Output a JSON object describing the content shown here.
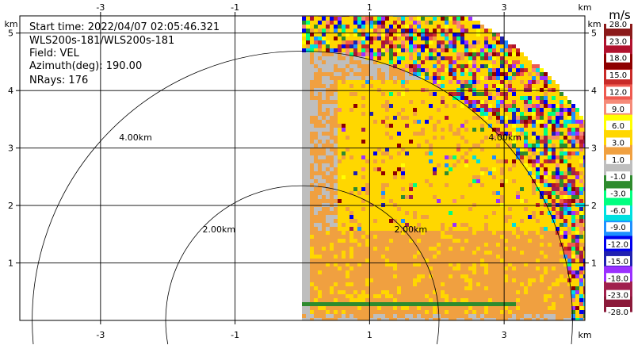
{
  "header": {
    "start_time": "Start time: 2022/04/07 02:05:46.321",
    "instrument": "WLS200s-181/WLS200s-181",
    "field": "Field: VEL",
    "azimuth": "Azimuth(deg): 190.00",
    "nrays": "NRays: 176"
  },
  "chart_data": {
    "type": "heatmap",
    "title": "",
    "xlabel": "km",
    "ylabel": "km",
    "xlim": [
      -4.2,
      4.2
    ],
    "ylim": [
      0,
      5.3
    ],
    "x_ticks": [
      -3,
      -1,
      1,
      3
    ],
    "y_ticks": [
      1,
      2,
      3,
      4,
      5
    ],
    "grid": true,
    "range_rings": [
      {
        "radius_km": 2.0,
        "label": "2.00km"
      },
      {
        "radius_km": 4.0,
        "label": "4.00km"
      }
    ],
    "sector": {
      "start_x_km": 0.0,
      "max_range_km": 5.15,
      "description_values": "dominant velocity bands"
    },
    "regions": [
      {
        "name": "near-ground band",
        "range_km": [
          0.0,
          0.1
        ],
        "value_ms": 1.5
      },
      {
        "name": "low-level jet line",
        "range_km": [
          0.2,
          0.3
        ],
        "value_ms": -2.0
      },
      {
        "name": "lower layer",
        "range_km": [
          0.3,
          1.4
        ],
        "value_ms": 2.0
      },
      {
        "name": "core layer",
        "range_km": [
          1.4,
          3.6
        ],
        "value_ms": 4.5
      },
      {
        "name": "upper layer",
        "range_km": [
          3.6,
          4.0
        ],
        "value_ms": 2.0
      },
      {
        "name": "noisy far range",
        "range_km": [
          4.0,
          5.15
        ],
        "value_ms": null
      }
    ],
    "colorbar": {
      "unit": "m/s",
      "labels": [
        "28.0",
        "23.0",
        "18.0",
        "15.0",
        "12.0",
        "9.0",
        "6.0",
        "3.0",
        "1.0",
        "-1.0",
        "-3.0",
        "-6.0",
        "-9.0",
        "-12.0",
        "-15.0",
        "-18.0",
        "-23.0",
        "-28.0"
      ],
      "colors": [
        "#8b1a1a",
        "#b0122e",
        "#8e0000",
        "#c82a28",
        "#ee5a50",
        "#f58a78",
        "#ffff00",
        "#ffd700",
        "#f0a040",
        "#bebebe",
        "#2e8b2e",
        "#00ff7f",
        "#00e0e0",
        "#1e90ff",
        "#0000ee",
        "#2020b0",
        "#9b30ff",
        "#a0204d",
        "#8b1a3a"
      ]
    }
  }
}
